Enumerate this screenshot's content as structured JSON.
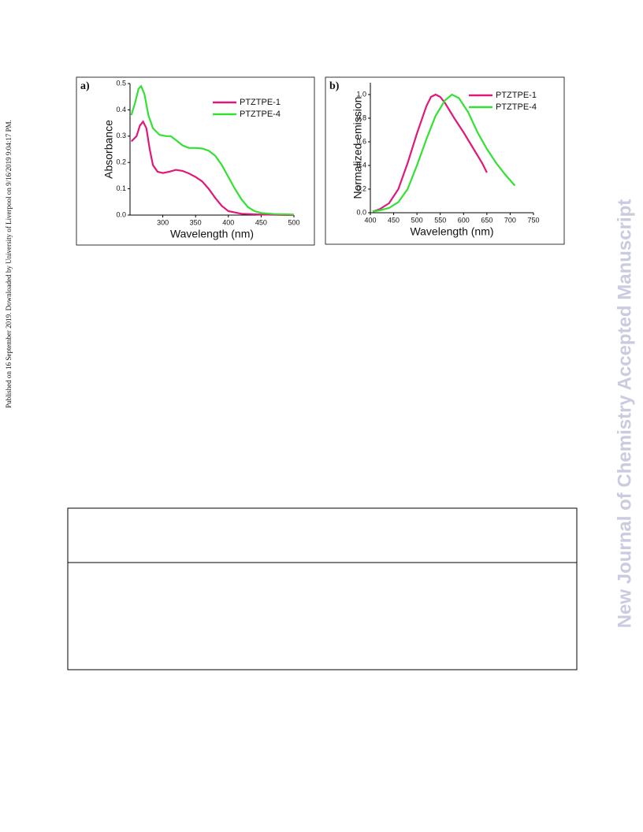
{
  "side_note": "Published on 16 September 2019. Downloaded by University of Liverpool on 9/16/2019 9:04:17 PM.",
  "watermark": "New Journal of Chemistry Accepted Manuscript",
  "chart_data": [
    {
      "type": "line",
      "panel_label": "a)",
      "xlabel": "Wavelength (nm)",
      "ylabel": "Absorbance",
      "xlim": [
        250,
        500
      ],
      "ylim": [
        0,
        0.5
      ],
      "xticks": [
        300,
        350,
        400,
        450,
        500
      ],
      "yticks": [
        {
          "value": 0,
          "label": "0.0"
        },
        0.1,
        0.2,
        0.3,
        0.4,
        0.5
      ],
      "legend": "upper right",
      "series": [
        {
          "name": "PTZTPE-1",
          "color": "#e0187a",
          "x": [
            252,
            260,
            265,
            270,
            275,
            280,
            285,
            292,
            300,
            310,
            320,
            330,
            340,
            350,
            360,
            370,
            380,
            390,
            400,
            420,
            450,
            500
          ],
          "values": [
            0.28,
            0.3,
            0.34,
            0.355,
            0.33,
            0.25,
            0.19,
            0.165,
            0.16,
            0.165,
            0.172,
            0.168,
            0.158,
            0.145,
            0.128,
            0.1,
            0.065,
            0.035,
            0.015,
            0.005,
            0.002,
            0
          ]
        },
        {
          "name": "PTZTPE-4",
          "color": "#33e033",
          "x": [
            252,
            258,
            263,
            267,
            272,
            278,
            285,
            295,
            305,
            312,
            320,
            330,
            340,
            350,
            360,
            370,
            380,
            390,
            400,
            410,
            420,
            430,
            440,
            450,
            470,
            500
          ],
          "values": [
            0.38,
            0.43,
            0.48,
            0.49,
            0.46,
            0.38,
            0.33,
            0.305,
            0.3,
            0.3,
            0.285,
            0.265,
            0.255,
            0.255,
            0.253,
            0.245,
            0.225,
            0.19,
            0.145,
            0.1,
            0.06,
            0.03,
            0.015,
            0.008,
            0.004,
            0.002
          ]
        }
      ]
    },
    {
      "type": "line",
      "panel_label": "b)",
      "xlabel": "Wavelength (nm)",
      "ylabel": "Normalized  emission",
      "xlim": [
        400,
        750
      ],
      "ylim": [
        0,
        1.1
      ],
      "xticks": [
        400,
        450,
        500,
        550,
        600,
        650,
        700,
        750
      ],
      "yticks": [
        {
          "value": 0,
          "label": "0.0"
        },
        0.2,
        0.4,
        0.6,
        0.8,
        {
          "value": 1,
          "label": "1.0"
        }
      ],
      "legend": "upper right",
      "series": [
        {
          "name": "PTZTPE-1",
          "color": "#e0187a",
          "x": [
            405,
            420,
            440,
            460,
            480,
            500,
            520,
            530,
            540,
            550,
            560,
            580,
            600,
            620,
            640,
            650
          ],
          "values": [
            0.01,
            0.03,
            0.08,
            0.2,
            0.42,
            0.67,
            0.9,
            0.98,
            1.0,
            0.98,
            0.93,
            0.8,
            0.68,
            0.55,
            0.42,
            0.34
          ]
        },
        {
          "name": "PTZTPE-4",
          "color": "#33e033",
          "x": [
            405,
            420,
            440,
            460,
            480,
            500,
            520,
            540,
            560,
            575,
            590,
            610,
            630,
            650,
            670,
            690,
            710
          ],
          "values": [
            0.01,
            0.02,
            0.04,
            0.09,
            0.2,
            0.4,
            0.62,
            0.82,
            0.95,
            1.0,
            0.97,
            0.85,
            0.68,
            0.54,
            0.42,
            0.32,
            0.23
          ]
        }
      ]
    }
  ]
}
